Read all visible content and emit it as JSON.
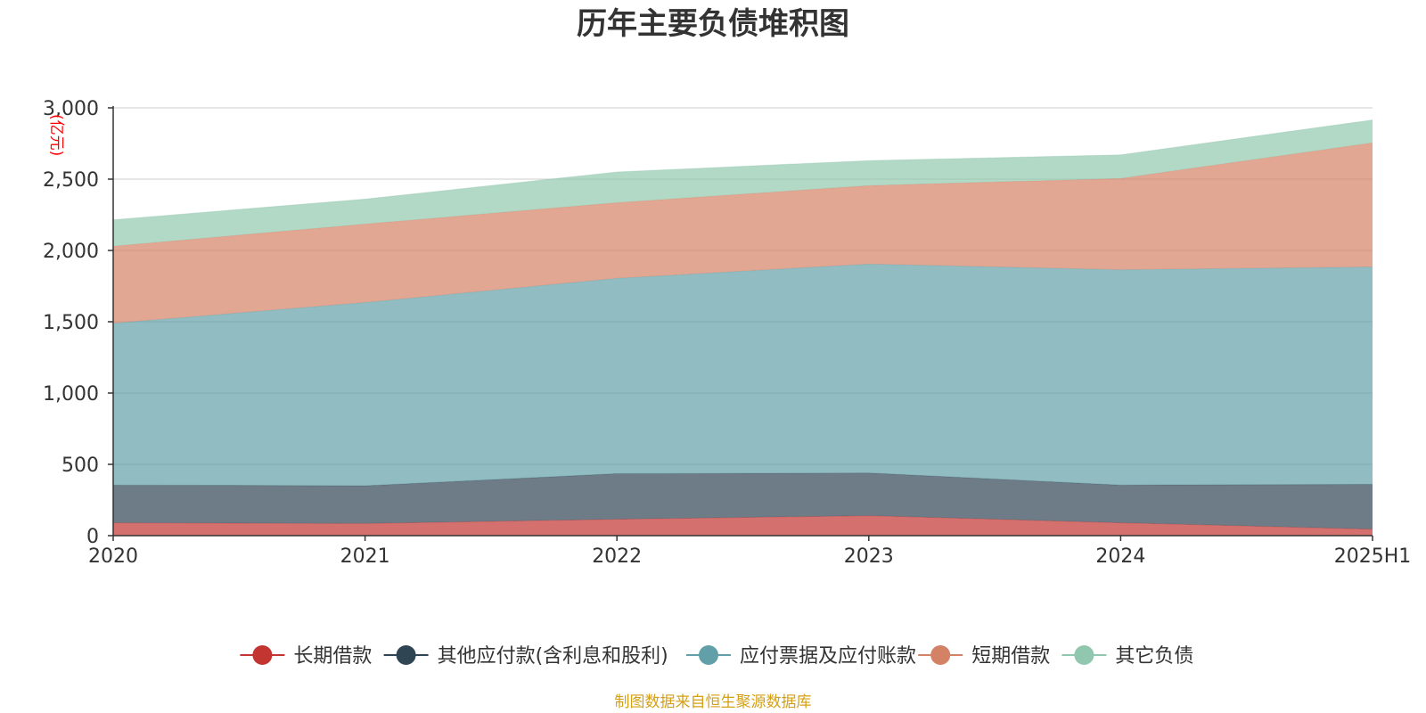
{
  "chart_data": {
    "type": "area",
    "stacked": true,
    "title": "历年主要负债堆积图",
    "unit_label": "(亿元)",
    "categories": [
      "2020",
      "2021",
      "2022",
      "2023",
      "2024",
      "2025H1"
    ],
    "y_ticks": [
      "0",
      "500",
      "1,000",
      "1,500",
      "2,000",
      "2,500",
      "3,000"
    ],
    "ylim": [
      0,
      3000
    ],
    "grid": true,
    "legend_position": "bottom",
    "series": [
      {
        "name": "长期借款",
        "color": "#c23531",
        "values": [
          90,
          85,
          115,
          140,
          90,
          45
        ]
      },
      {
        "name": "其他应付款(含利息和股利)",
        "color": "#2f4554",
        "values": [
          265,
          265,
          320,
          300,
          265,
          315
        ]
      },
      {
        "name": "应付票据及应付账款",
        "color": "#61a0a8",
        "values": [
          1135,
          1285,
          1370,
          1465,
          1510,
          1525
        ]
      },
      {
        "name": "短期借款",
        "color": "#d48265",
        "values": [
          540,
          550,
          530,
          550,
          640,
          870
        ]
      },
      {
        "name": "其它负债",
        "color": "#91c7ae",
        "values": [
          185,
          175,
          215,
          175,
          165,
          160
        ]
      }
    ]
  },
  "source_note": "制图数据来自恒生聚源数据库"
}
